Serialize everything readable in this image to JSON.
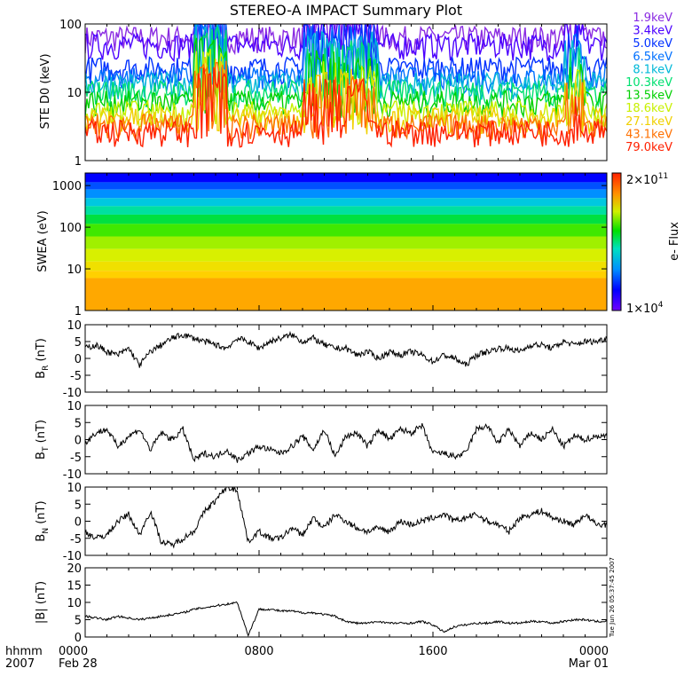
{
  "title": "STEREO-A IMPACT Summary Plot",
  "timestamp_label": "Tue Jun 26 05:37:45 2007",
  "x_axis": {
    "row_label_1": "hhmm",
    "row_label_2": "2007",
    "ticks": [
      {
        "hhmm": "0000",
        "date": "Feb 28",
        "hour": 0
      },
      {
        "hhmm": "0800",
        "date": "",
        "hour": 8
      },
      {
        "hhmm": "1600",
        "date": "",
        "hour": 16
      },
      {
        "hhmm": "0000",
        "date": "Mar 01",
        "hour": 24
      }
    ],
    "range_hours": [
      0,
      24
    ]
  },
  "colors": {
    "ste_channels": [
      "#8a2be2",
      "#4b00ff",
      "#0030ff",
      "#0070ff",
      "#00b8d8",
      "#00e070",
      "#00d000",
      "#c8f000",
      "#f0d000",
      "#ff7000",
      "#ff2000"
    ]
  },
  "chart_data": [
    {
      "id": "ste",
      "type": "line",
      "ylabel": "STE D0 (keV)",
      "yscale": "log",
      "ylim": [
        1,
        100
      ],
      "yticks": [
        {
          "value": 1,
          "label": "1"
        },
        {
          "value": 10,
          "label": "10"
        },
        {
          "value": 100,
          "label": "100"
        }
      ],
      "legend_position": "right",
      "series": [
        {
          "name": "1.9keV",
          "level": 62
        },
        {
          "name": "3.4keV",
          "level": 48
        },
        {
          "name": "5.0keV",
          "level": 22
        },
        {
          "name": "6.5keV",
          "level": 16
        },
        {
          "name": "8.1keV",
          "level": 13
        },
        {
          "name": "10.3keV",
          "level": 10
        },
        {
          "name": "13.5keV",
          "level": 7
        },
        {
          "name": "18.6keV",
          "level": 5
        },
        {
          "name": "27.1keV",
          "level": 4
        },
        {
          "name": "43.1keV",
          "level": 3.2
        },
        {
          "name": "79.0keV",
          "level": 2.6
        }
      ]
    },
    {
      "id": "swea",
      "type": "heatmap",
      "ylabel": "SWEA (eV)",
      "yscale": "log",
      "ylim": [
        1,
        2000
      ],
      "yticks": [
        {
          "value": 1,
          "label": "1"
        },
        {
          "value": 10,
          "label": "10"
        },
        {
          "value": 100,
          "label": "100"
        },
        {
          "value": 1000,
          "label": "1000"
        }
      ],
      "colorbar": {
        "label": "e- Flux",
        "max_label": "2×10",
        "max_exp": "11",
        "min_label": "1×10",
        "min_exp": "4"
      }
    },
    {
      "id": "br",
      "type": "line",
      "ylabel_main": "B",
      "ylabel_sub": "R",
      "ylabel_unit": " (nT)",
      "ylim": [
        -10,
        10
      ],
      "yticks": [
        {
          "value": 10,
          "label": "10"
        },
        {
          "value": 5,
          "label": "5"
        },
        {
          "value": 0,
          "label": "0"
        },
        {
          "value": -5,
          "label": "-5"
        },
        {
          "value": -10,
          "label": "-10"
        }
      ],
      "x": [
        0,
        0.5,
        1,
        1.5,
        2,
        2.5,
        3,
        3.5,
        4,
        4.5,
        5,
        5.5,
        6,
        6.5,
        7,
        7.5,
        8,
        8.5,
        9,
        9.5,
        10,
        10.5,
        11,
        11.5,
        12,
        12.5,
        13,
        13.5,
        14,
        14.5,
        15,
        15.5,
        16,
        16.5,
        17,
        17.5,
        18,
        18.5,
        19,
        19.5,
        20,
        20.5,
        21,
        21.5,
        22,
        22.5,
        23,
        23.5,
        24
      ],
      "y": [
        3,
        4,
        2,
        1,
        3,
        -2,
        2,
        4,
        6,
        7,
        6,
        5,
        4,
        3,
        6,
        5,
        3,
        5,
        6,
        7,
        5,
        6,
        4,
        3,
        3,
        1,
        2,
        0,
        2,
        1,
        2,
        1,
        -1,
        1,
        0,
        -2,
        1,
        2,
        3,
        3,
        2,
        4,
        4,
        3,
        5,
        4,
        5,
        5,
        6
      ]
    },
    {
      "id": "bt",
      "type": "line",
      "ylabel_main": "B",
      "ylabel_sub": "T",
      "ylabel_unit": " (nT)",
      "ylim": [
        -10,
        10
      ],
      "yticks": [
        {
          "value": 10,
          "label": "10"
        },
        {
          "value": 5,
          "label": "5"
        },
        {
          "value": 0,
          "label": "0"
        },
        {
          "value": -5,
          "label": "-5"
        },
        {
          "value": -10,
          "label": "-10"
        }
      ],
      "x": [
        0,
        0.5,
        1,
        1.5,
        2,
        2.5,
        3,
        3.5,
        4,
        4.5,
        5,
        5.5,
        6,
        6.5,
        7,
        7.5,
        8,
        8.5,
        9,
        9.5,
        10,
        10.5,
        11,
        11.5,
        12,
        12.5,
        13,
        13.5,
        14,
        14.5,
        15,
        15.5,
        16,
        16.5,
        17,
        17.5,
        18,
        18.5,
        19,
        19.5,
        20,
        20.5,
        21,
        21.5,
        22,
        22.5,
        23,
        23.5,
        24
      ],
      "y": [
        -1,
        2,
        3,
        -2,
        1,
        3,
        -3,
        2,
        0,
        3,
        -6,
        -4,
        -5,
        -3,
        -6,
        -4,
        -2,
        -3,
        -4,
        -2,
        1,
        -3,
        3,
        -5,
        1,
        2,
        -2,
        3,
        0,
        3,
        2,
        4,
        -4,
        -4,
        -5,
        -4,
        3,
        4,
        -1,
        3,
        -2,
        2,
        0,
        3,
        -2,
        1,
        0,
        1,
        1
      ]
    },
    {
      "id": "bn",
      "type": "line",
      "ylabel_main": "B",
      "ylabel_sub": "N",
      "ylabel_unit": " (nT)",
      "ylim": [
        -10,
        10
      ],
      "yticks": [
        {
          "value": 10,
          "label": "10"
        },
        {
          "value": 5,
          "label": "5"
        },
        {
          "value": 0,
          "label": "0"
        },
        {
          "value": -5,
          "label": "-5"
        },
        {
          "value": -10,
          "label": "-10"
        }
      ],
      "x": [
        0,
        0.5,
        1,
        1.5,
        2,
        2.5,
        3,
        3.5,
        4,
        4.5,
        5,
        5.5,
        6,
        6.5,
        7,
        7.5,
        8,
        8.5,
        9,
        9.5,
        10,
        10.5,
        11,
        11.5,
        12,
        12.5,
        13,
        13.5,
        14,
        14.5,
        15,
        15.5,
        16,
        16.5,
        17,
        17.5,
        18,
        18.5,
        19,
        19.5,
        20,
        20.5,
        21,
        21.5,
        22,
        22.5,
        23,
        23.5,
        24
      ],
      "y": [
        -3,
        -5,
        -4,
        0,
        2,
        -4,
        3,
        -6,
        -7,
        -5,
        -3,
        3,
        6,
        10,
        9,
        -6,
        -3,
        -5,
        -5,
        -2,
        -4,
        1,
        -2,
        2,
        0,
        -2,
        -3,
        -2,
        -3,
        0,
        -1,
        0,
        1,
        2,
        0,
        1,
        2,
        0,
        -1,
        -3,
        1,
        2,
        3,
        1,
        0,
        -1,
        2,
        -1,
        -1
      ]
    },
    {
      "id": "bmag",
      "type": "line",
      "ylabel": "|B| (nT)",
      "ylim": [
        0,
        20
      ],
      "yticks": [
        {
          "value": 20,
          "label": "20"
        },
        {
          "value": 15,
          "label": "15"
        },
        {
          "value": 10,
          "label": "10"
        },
        {
          "value": 5,
          "label": "5"
        },
        {
          "value": 0,
          "label": "0"
        }
      ],
      "x": [
        0,
        0.5,
        1,
        1.5,
        2,
        2.5,
        3,
        3.5,
        4,
        4.5,
        5,
        5.5,
        6,
        6.5,
        7,
        7.5,
        8,
        8.5,
        9,
        9.5,
        10,
        10.5,
        11,
        11.5,
        12,
        12.5,
        13,
        13.5,
        14,
        14.5,
        15,
        15.5,
        16,
        16.5,
        17,
        17.5,
        18,
        18.5,
        19,
        19.5,
        20,
        20.5,
        21,
        21.5,
        22,
        22.5,
        23,
        23.5,
        24
      ],
      "y": [
        6,
        5.5,
        5,
        6,
        5.5,
        5,
        5.5,
        6,
        6.5,
        7,
        8,
        8.5,
        9,
        9.5,
        10,
        0.5,
        8,
        8,
        7.5,
        7.5,
        7,
        7,
        6.5,
        6,
        4.5,
        4,
        4,
        4.5,
        4,
        4,
        4,
        4.5,
        3.5,
        1.5,
        3,
        3.5,
        4,
        4,
        4.5,
        4,
        4,
        4.5,
        4.5,
        4,
        4.5,
        5,
        5,
        4.5,
        4.5
      ]
    }
  ]
}
